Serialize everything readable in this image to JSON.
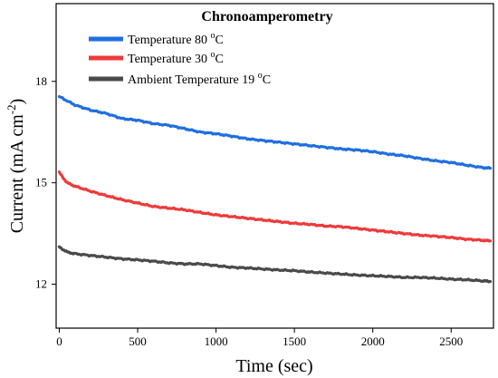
{
  "chart_data": {
    "type": "line",
    "title": "",
    "xlabel": "Time (sec)",
    "ylabel_main": "Current (mA cm",
    "ylabel_sup": "-2",
    "ylabel_close": ")",
    "xlim": [
      -20,
      2770
    ],
    "ylim": [
      10.7,
      20.3
    ],
    "xticks": [
      0,
      500,
      1000,
      1500,
      2000,
      2500
    ],
    "xtick_labels": [
      "0",
      "500",
      "1000",
      "1500",
      "2000",
      "2500"
    ],
    "yticks": [
      12,
      15,
      18
    ],
    "ytick_labels": [
      "12",
      "15",
      "18"
    ],
    "grid": false,
    "legend": {
      "title": "Chronoamperometry",
      "position": "top-right"
    },
    "series": [
      {
        "name": "Temperature 80 ",
        "name_sup": "o",
        "name_unit": "C",
        "color": "#1f6fe0",
        "points": [
          [
            0,
            17.55
          ],
          [
            100,
            17.3
          ],
          [
            200,
            17.15
          ],
          [
            300,
            17.05
          ],
          [
            400,
            16.9
          ],
          [
            500,
            16.85
          ],
          [
            600,
            16.75
          ],
          [
            700,
            16.7
          ],
          [
            800,
            16.6
          ],
          [
            900,
            16.5
          ],
          [
            1000,
            16.45
          ],
          [
            1100,
            16.38
          ],
          [
            1200,
            16.3
          ],
          [
            1300,
            16.25
          ],
          [
            1400,
            16.2
          ],
          [
            1500,
            16.15
          ],
          [
            1600,
            16.1
          ],
          [
            1700,
            16.05
          ],
          [
            1800,
            16.0
          ],
          [
            1900,
            15.97
          ],
          [
            2000,
            15.92
          ],
          [
            2100,
            15.85
          ],
          [
            2200,
            15.8
          ],
          [
            2300,
            15.72
          ],
          [
            2400,
            15.65
          ],
          [
            2500,
            15.6
          ],
          [
            2600,
            15.52
          ],
          [
            2700,
            15.45
          ],
          [
            2750,
            15.43
          ]
        ]
      },
      {
        "name": "Temperature 30 ",
        "name_sup": "o",
        "name_unit": "C",
        "color": "#ee3a3a",
        "points": [
          [
            0,
            15.3
          ],
          [
            50,
            15.0
          ],
          [
            100,
            14.9
          ],
          [
            200,
            14.75
          ],
          [
            300,
            14.62
          ],
          [
            400,
            14.5
          ],
          [
            500,
            14.4
          ],
          [
            600,
            14.3
          ],
          [
            700,
            14.25
          ],
          [
            800,
            14.2
          ],
          [
            900,
            14.12
          ],
          [
            1000,
            14.05
          ],
          [
            1100,
            14.0
          ],
          [
            1200,
            13.95
          ],
          [
            1300,
            13.9
          ],
          [
            1400,
            13.85
          ],
          [
            1500,
            13.8
          ],
          [
            1600,
            13.77
          ],
          [
            1700,
            13.72
          ],
          [
            1800,
            13.7
          ],
          [
            1900,
            13.65
          ],
          [
            2000,
            13.6
          ],
          [
            2100,
            13.55
          ],
          [
            2200,
            13.5
          ],
          [
            2300,
            13.45
          ],
          [
            2400,
            13.42
          ],
          [
            2500,
            13.38
          ],
          [
            2600,
            13.33
          ],
          [
            2700,
            13.3
          ],
          [
            2750,
            13.28
          ]
        ]
      },
      {
        "name": "Ambient Temperature 19 ",
        "name_sup": "o",
        "name_unit": "C",
        "color": "#4a4a4a",
        "points": [
          [
            0,
            13.1
          ],
          [
            50,
            12.95
          ],
          [
            100,
            12.9
          ],
          [
            200,
            12.85
          ],
          [
            300,
            12.8
          ],
          [
            400,
            12.75
          ],
          [
            500,
            12.72
          ],
          [
            600,
            12.68
          ],
          [
            700,
            12.63
          ],
          [
            800,
            12.6
          ],
          [
            900,
            12.6
          ],
          [
            1000,
            12.55
          ],
          [
            1100,
            12.5
          ],
          [
            1200,
            12.48
          ],
          [
            1300,
            12.45
          ],
          [
            1400,
            12.42
          ],
          [
            1500,
            12.4
          ],
          [
            1600,
            12.36
          ],
          [
            1700,
            12.33
          ],
          [
            1800,
            12.3
          ],
          [
            1900,
            12.27
          ],
          [
            2000,
            12.25
          ],
          [
            2100,
            12.23
          ],
          [
            2200,
            12.2
          ],
          [
            2300,
            12.2
          ],
          [
            2400,
            12.18
          ],
          [
            2500,
            12.15
          ],
          [
            2600,
            12.13
          ],
          [
            2700,
            12.1
          ],
          [
            2750,
            12.08
          ]
        ]
      }
    ]
  }
}
